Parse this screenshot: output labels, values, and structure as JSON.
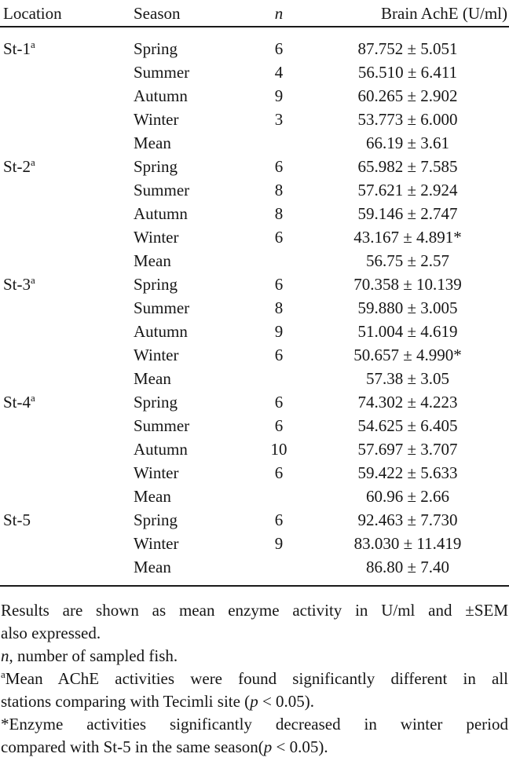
{
  "table": {
    "columns": [
      {
        "label": "Location"
      },
      {
        "label": "Season"
      },
      {
        "label": "n"
      },
      {
        "label": "Brain AchE (U/ml)"
      }
    ],
    "rows": [
      {
        "location": "St-1",
        "location_sup": "a",
        "season": "Spring",
        "n": "6",
        "value": "87.752 ± 5.051"
      },
      {
        "location": "",
        "location_sup": "",
        "season": "Summer",
        "n": "4",
        "value": "56.510 ± 6.411"
      },
      {
        "location": "",
        "location_sup": "",
        "season": "Autumn",
        "n": "9",
        "value": "60.265 ± 2.902"
      },
      {
        "location": "",
        "location_sup": "",
        "season": "Winter",
        "n": "3",
        "value": "53.773 ± 6.000"
      },
      {
        "location": "",
        "location_sup": "",
        "season": "Mean",
        "n": "",
        "value": "66.19 ± 3.61"
      },
      {
        "location": "St-2",
        "location_sup": "a",
        "season": "Spring",
        "n": "6",
        "value": "65.982 ± 7.585"
      },
      {
        "location": "",
        "location_sup": "",
        "season": "Summer",
        "n": "8",
        "value": "57.621 ± 2.924"
      },
      {
        "location": "",
        "location_sup": "",
        "season": "Autumn",
        "n": "8",
        "value": "59.146 ± 2.747"
      },
      {
        "location": "",
        "location_sup": "",
        "season": "Winter",
        "n": "6",
        "value": "43.167 ± 4.891*"
      },
      {
        "location": "",
        "location_sup": "",
        "season": "Mean",
        "n": "",
        "value": "56.75 ± 2.57"
      },
      {
        "location": "St-3",
        "location_sup": "a",
        "season": "Spring",
        "n": "6",
        "value": "70.358 ± 10.139"
      },
      {
        "location": "",
        "location_sup": "",
        "season": "Summer",
        "n": "8",
        "value": "59.880 ± 3.005"
      },
      {
        "location": "",
        "location_sup": "",
        "season": "Autumn",
        "n": "9",
        "value": "51.004 ± 4.619"
      },
      {
        "location": "",
        "location_sup": "",
        "season": "Winter",
        "n": "6",
        "value": "50.657 ± 4.990*"
      },
      {
        "location": "",
        "location_sup": "",
        "season": "Mean",
        "n": "",
        "value": "57.38 ± 3.05"
      },
      {
        "location": "St-4",
        "location_sup": "a",
        "season": "Spring",
        "n": "6",
        "value": "74.302 ± 4.223"
      },
      {
        "location": "",
        "location_sup": "",
        "season": "Summer",
        "n": "6",
        "value": "54.625 ± 6.405"
      },
      {
        "location": "",
        "location_sup": "",
        "season": "Autumn",
        "n": "10",
        "value": "57.697 ± 3.707"
      },
      {
        "location": "",
        "location_sup": "",
        "season": "Winter",
        "n": "6",
        "value": "59.422 ± 5.633"
      },
      {
        "location": "",
        "location_sup": "",
        "season": "Mean",
        "n": "",
        "value": "60.96 ± 2.66"
      },
      {
        "location": "St-5",
        "location_sup": "",
        "season": "Spring",
        "n": "6",
        "value": "92.463 ± 7.730"
      },
      {
        "location": "",
        "location_sup": "",
        "season": "Winter",
        "n": "9",
        "value": "83.030 ± 11.419"
      },
      {
        "location": "",
        "location_sup": "",
        "season": "Mean",
        "n": "",
        "value": "86.80 ± 7.40"
      }
    ]
  },
  "footnotes": [
    {
      "justify": true,
      "segments": [
        {
          "t": "Results are shown as mean enzyme activity in U/ml and ±SEM"
        }
      ]
    },
    {
      "justify": false,
      "segments": [
        {
          "t": "also expressed."
        }
      ]
    },
    {
      "justify": false,
      "segments": [
        {
          "t": "n",
          "s": "i"
        },
        {
          "t": ", number of sampled fish."
        }
      ]
    },
    {
      "justify": true,
      "segments": [
        {
          "t": "a",
          "s": "sup"
        },
        {
          "t": "Mean AChE activities were found significantly different in all"
        }
      ]
    },
    {
      "justify": false,
      "segments": [
        {
          "t": "stations comparing with Tecimli site ("
        },
        {
          "t": "p",
          "s": "i"
        },
        {
          "t": " < 0.05)."
        }
      ]
    },
    {
      "justify": true,
      "segments": [
        {
          "t": "*Enzyme activities significantly decreased in winter period"
        }
      ]
    },
    {
      "justify": false,
      "segments": [
        {
          "t": "compared with St-5 in the same season("
        },
        {
          "t": "p",
          "s": "i"
        },
        {
          "t": " < 0.05)."
        }
      ]
    }
  ]
}
